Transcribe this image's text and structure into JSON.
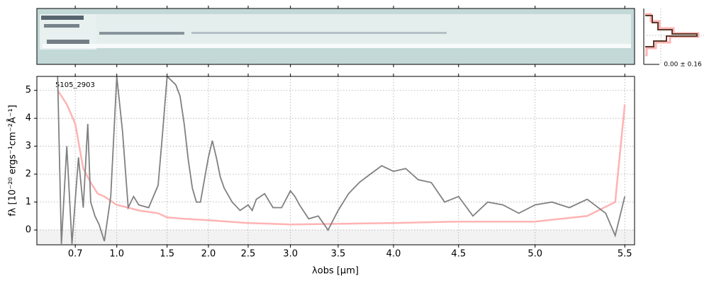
{
  "chart_data": {
    "type": "line",
    "xlabel": "λobs [μm]",
    "ylabel": "fλ [10⁻²⁰ ergs⁻¹cm⁻²Å⁻¹]",
    "annotations": [
      "5105_2903",
      "0.00 ± 0.16"
    ],
    "xscale": "prism",
    "xlim": [
      0.5,
      5.55
    ],
    "ylim": [
      -0.53,
      5.5
    ],
    "xticks": [
      0.7,
      {
        "value": 1,
        "label": "1.0"
      },
      1.5,
      {
        "value": 2,
        "label": "2.0"
      },
      2.5,
      {
        "value": 3,
        "label": "3.0"
      },
      3.5,
      {
        "value": 4,
        "label": "4.0"
      },
      4.5,
      {
        "value": 5,
        "label": "5.0"
      },
      5.5
    ],
    "yticks": [
      0,
      1,
      2,
      3,
      4,
      5
    ],
    "grid": true,
    "series": [
      {
        "color": "#ffb3b3",
        "x": [
          0.6,
          0.65,
          0.7,
          0.75,
          0.8,
          0.85,
          0.9,
          1.0,
          1.1,
          1.2,
          1.4,
          1.5,
          1.7,
          2.0,
          2.5,
          3.0,
          3.5,
          4.0,
          4.5,
          5.0,
          5.3,
          5.45,
          5.5
        ],
        "values": [
          5.0,
          4.5,
          3.8,
          2.2,
          1.7,
          1.3,
          1.2,
          0.9,
          0.8,
          0.7,
          0.6,
          0.45,
          0.4,
          0.35,
          0.25,
          0.2,
          0.22,
          0.25,
          0.3,
          0.3,
          0.5,
          1.0,
          4.5
        ]
      },
      {
        "color": "#808080",
        "x": [
          0.6,
          0.62,
          0.65,
          0.68,
          0.72,
          0.75,
          0.78,
          0.8,
          0.83,
          0.86,
          0.9,
          0.95,
          1.0,
          1.05,
          1.1,
          1.15,
          1.2,
          1.3,
          1.4,
          1.45,
          1.5,
          1.6,
          1.65,
          1.7,
          1.75,
          1.8,
          1.85,
          1.9,
          1.95,
          2.0,
          2.05,
          2.1,
          2.15,
          2.2,
          2.3,
          2.4,
          2.5,
          2.55,
          2.6,
          2.7,
          2.8,
          2.9,
          3.0,
          3.05,
          3.1,
          3.2,
          3.3,
          3.4,
          3.5,
          3.6,
          3.7,
          3.8,
          3.9,
          4.0,
          4.1,
          4.2,
          4.3,
          4.4,
          4.5,
          4.6,
          4.7,
          4.8,
          4.9,
          5.0,
          5.1,
          5.2,
          5.3,
          5.4,
          5.45,
          5.5
        ],
        "values": [
          5.5,
          -0.5,
          3.0,
          -0.5,
          2.6,
          0.8,
          3.8,
          1.0,
          0.5,
          0.2,
          -0.4,
          1.2,
          5.5,
          3.5,
          0.8,
          1.2,
          0.9,
          0.8,
          1.6,
          3.5,
          5.5,
          5.2,
          4.8,
          3.8,
          2.5,
          1.5,
          1.0,
          1.0,
          1.8,
          2.6,
          3.2,
          2.6,
          1.9,
          1.5,
          1.0,
          0.7,
          0.9,
          0.7,
          1.1,
          1.3,
          0.8,
          0.8,
          1.4,
          1.2,
          0.9,
          0.4,
          0.5,
          0.0,
          0.7,
          1.3,
          1.7,
          2.0,
          2.3,
          2.1,
          2.2,
          1.8,
          1.7,
          1.0,
          1.2,
          0.5,
          1.0,
          0.9,
          0.6,
          0.9,
          1.0,
          0.8,
          1.1,
          0.6,
          -0.2,
          1.2
        ]
      }
    ]
  }
}
